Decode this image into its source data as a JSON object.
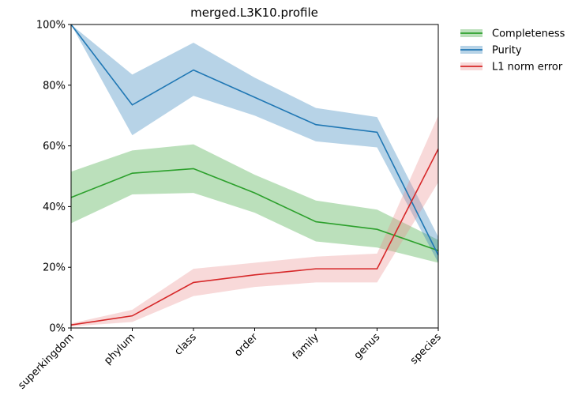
{
  "chart_data": {
    "type": "line",
    "title": "merged.L3K10.profile",
    "xlabel": "",
    "ylabel": "",
    "categories": [
      "superkingdom",
      "phylum",
      "class",
      "order",
      "family",
      "genus",
      "species"
    ],
    "ylim": [
      0,
      100
    ],
    "yticks": [
      0,
      20,
      40,
      60,
      80,
      100
    ],
    "ytick_labels": [
      "0%",
      "20%",
      "40%",
      "60%",
      "80%",
      "100%"
    ],
    "grid": false,
    "legend_position": "outside-top-right",
    "series": [
      {
        "name": "Completeness",
        "color": "#2ca02c",
        "band_color": "#2ca02c",
        "values": [
          43,
          51,
          52.5,
          44.5,
          35,
          32.5,
          25.5
        ],
        "lower": [
          34.5,
          44,
          44.5,
          38,
          28.5,
          26.5,
          21.5
        ],
        "upper": [
          51.5,
          58.5,
          60.5,
          50.5,
          42,
          39,
          29
        ]
      },
      {
        "name": "Purity",
        "color": "#1f77b4",
        "band_color": "#1f77b4",
        "values": [
          100,
          73.5,
          85,
          76,
          67,
          64.5,
          24
        ],
        "lower": [
          100,
          63.5,
          76.5,
          70,
          61.5,
          59.5,
          21.5
        ],
        "upper": [
          100,
          83.5,
          94,
          82.5,
          72.5,
          69.5,
          30
        ]
      },
      {
        "name": "L1 norm error",
        "color": "#d62728",
        "band_color": "#e8888a",
        "values": [
          1,
          4,
          15,
          17.5,
          19.5,
          19.5,
          59
        ],
        "lower": [
          0.5,
          2,
          10.5,
          13.5,
          15,
          15,
          48
        ],
        "upper": [
          1.5,
          6,
          19.5,
          21.5,
          23.5,
          24.5,
          70
        ]
      }
    ]
  }
}
